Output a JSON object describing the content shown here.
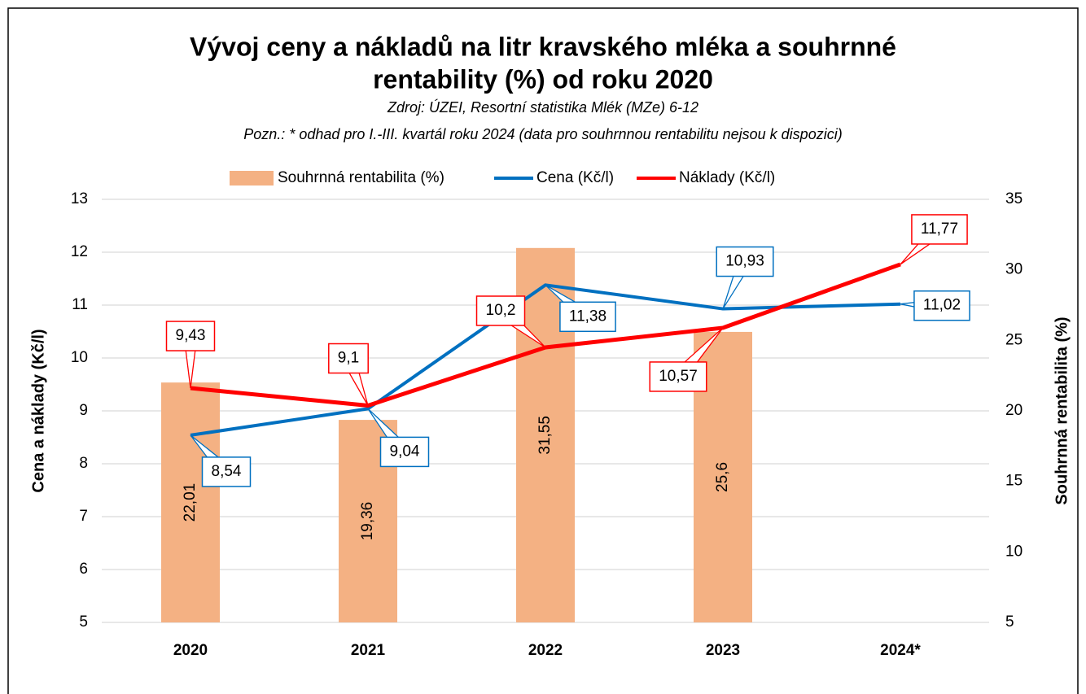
{
  "chart_data": {
    "type": "bar-line",
    "title": [
      "Vývoj ceny a nákladů na litr kravského mléka a souhrnné",
      "rentability (%) od roku 2020"
    ],
    "subtitle": "Zdroj: ÚZEI, Resortní statistika Mlék (MZe) 6-12",
    "note": "Pozn.: * odhad pro I.-III. kvartál roku 2024 (data pro souhrnnou rentabilitu nejsou k dispozici)",
    "y_label": "Cena a náklady (Kč/l)",
    "y2_label": "Souhrnná rentabilita (%)",
    "categories": [
      "2020",
      "2021",
      "2022",
      "2023",
      "2024*"
    ],
    "ylim": [
      5,
      13
    ],
    "yticks": [
      5,
      6,
      7,
      8,
      9,
      10,
      11,
      12,
      13
    ],
    "y2lim": [
      5,
      35
    ],
    "y2ticks": [
      5,
      10,
      15,
      20,
      25,
      30,
      35
    ],
    "grid": true,
    "legend": "top",
    "series": [
      {
        "name": "Souhrnná rentabilita (%)",
        "type": "bar",
        "axis": "y2",
        "color": "#f4b183",
        "values": [
          22.01,
          19.36,
          31.55,
          25.6,
          null
        ],
        "value_labels": [
          "22,01",
          "19,36",
          "31,55",
          "25,6",
          null
        ]
      },
      {
        "name": "Cena (Kč/l)",
        "type": "line",
        "axis": "y",
        "color": "#0070c0",
        "values": [
          8.54,
          9.04,
          11.38,
          10.93,
          11.02
        ],
        "value_labels": [
          "8,54",
          "9,04",
          "11,38",
          "10,93",
          "11,02"
        ]
      },
      {
        "name": "Náklady (Kč/l)",
        "type": "line",
        "axis": "y",
        "color": "#ff0000",
        "values": [
          9.43,
          9.1,
          10.2,
          10.57,
          11.77
        ],
        "value_labels": [
          "9,43",
          "9,1",
          "10,2",
          "10,57",
          "11,77"
        ]
      }
    ]
  }
}
